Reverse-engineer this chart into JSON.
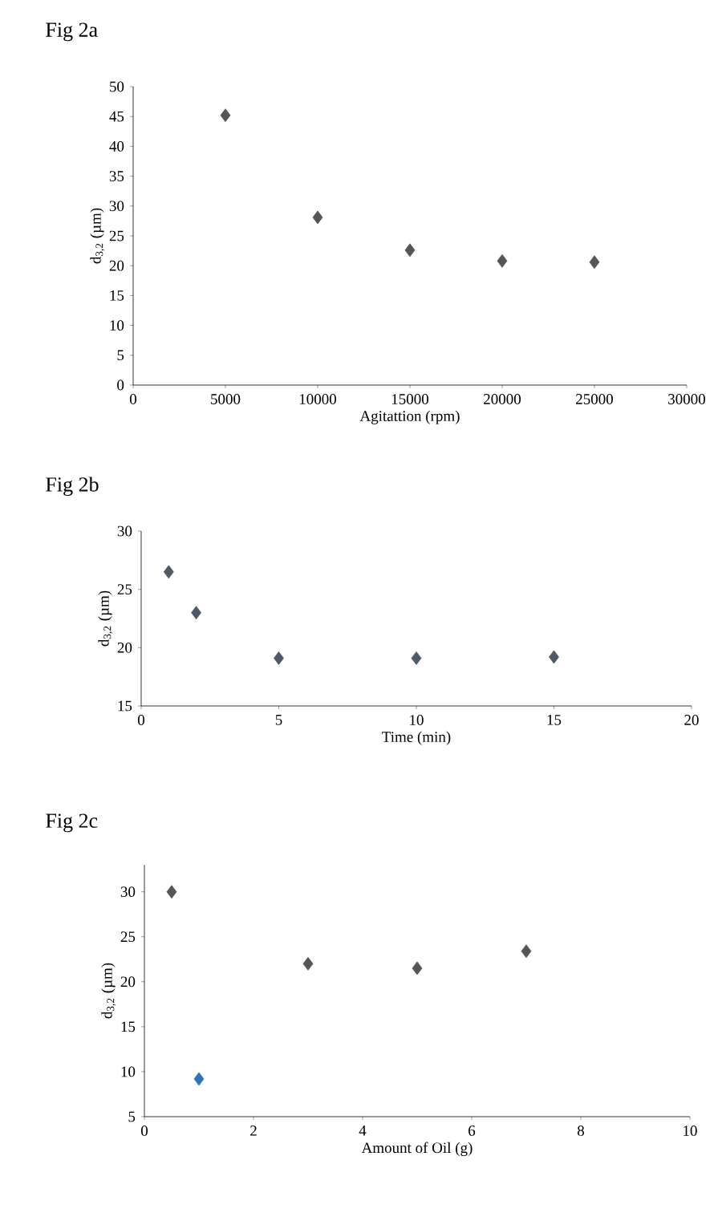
{
  "chart_data": [
    {
      "type": "scatter",
      "title": "Fig 2a",
      "xlabel": "Agitattion (rpm)",
      "ylabel": "d$_{3,2}$ (µm)",
      "x": [
        5000,
        10000,
        15000,
        20000,
        25000
      ],
      "values": [
        45.2,
        28.1,
        22.6,
        20.8,
        20.6
      ],
      "color": "#555555",
      "marker": "diamond",
      "xlim": [
        0,
        30000
      ],
      "xticks": [
        0,
        5000,
        10000,
        15000,
        20000,
        25000,
        30000
      ],
      "ylim": [
        0,
        50
      ],
      "yticks": [
        0,
        5,
        10,
        15,
        20,
        25,
        30,
        35,
        40,
        45,
        50
      ]
    },
    {
      "type": "scatter",
      "title": "Fig 2b",
      "xlabel": "Time (min)",
      "ylabel": "d$_{3,2}$ (µm)",
      "x": [
        1,
        2,
        5,
        10,
        15
      ],
      "values": [
        26.5,
        23.0,
        19.1,
        19.1,
        19.2
      ],
      "color": "#4f5a66",
      "marker": "diamond",
      "xlim": [
        0,
        20
      ],
      "xticks": [
        0,
        5,
        10,
        15,
        20
      ],
      "ylim": [
        15,
        30
      ],
      "yticks": [
        15,
        20,
        25,
        30
      ]
    },
    {
      "type": "scatter",
      "title": "Fig 2c",
      "xlabel": "Amount of Oil (g)",
      "ylabel": "d$_{3,2}$ (µm)",
      "x": [
        0.5,
        1,
        3,
        5,
        7
      ],
      "values": [
        30.0,
        9.2,
        22.0,
        21.5,
        23.4
      ],
      "colors": [
        "#555555",
        "#2e75b6",
        "#555555",
        "#555555",
        "#555555"
      ],
      "marker": "diamond",
      "xlim": [
        0,
        10
      ],
      "xticks": [
        0,
        2,
        4,
        6,
        8,
        10
      ],
      "ylim": [
        5,
        33
      ],
      "yticks": [
        5,
        10,
        15,
        20,
        25,
        30
      ]
    }
  ]
}
